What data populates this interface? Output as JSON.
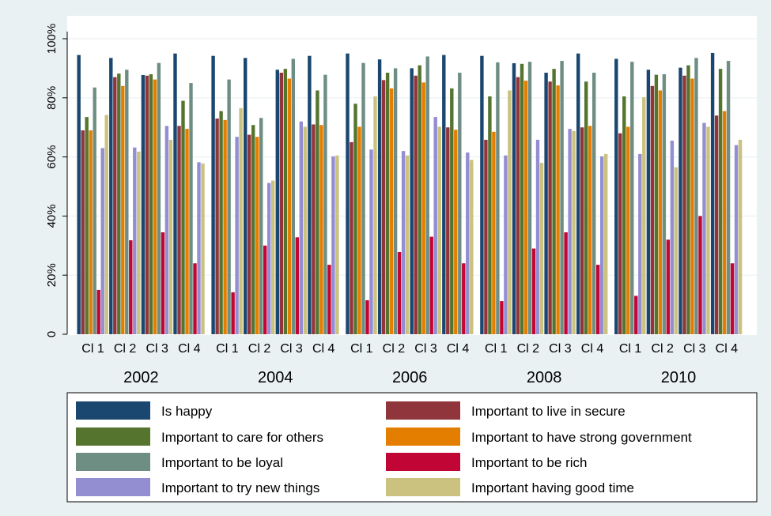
{
  "chart_data": {
    "type": "bar",
    "ylim": [
      0,
      100
    ],
    "yticks": [
      0,
      20,
      40,
      60,
      80,
      100
    ],
    "ytick_labels": [
      "0",
      "20%",
      "40%",
      "60%",
      "80%",
      "100%"
    ],
    "grid": "horizontal",
    "legend_position": "bottom",
    "years": [
      "2002",
      "2004",
      "2006",
      "2008",
      "2010"
    ],
    "clusters": [
      "Cl 1",
      "Cl 2",
      "Cl 3",
      "Cl 4"
    ],
    "series": [
      {
        "name": "Is happy",
        "color": "#1a476f",
        "values": [
          94.5,
          93.5,
          87.7,
          95.0,
          94.2,
          93.5,
          89.5,
          94.2,
          95.0,
          93.0,
          90.0,
          94.5,
          94.2,
          91.7,
          88.5,
          95.0,
          93.2,
          89.5,
          90.2,
          95.2
        ]
      },
      {
        "name": "Important to live in secure",
        "color": "#90353b",
        "values": [
          69.0,
          87.0,
          87.5,
          70.5,
          73.0,
          67.5,
          88.5,
          71.0,
          65.0,
          86.0,
          87.5,
          70.0,
          65.8,
          87.0,
          85.5,
          70.0,
          68.0,
          84.0,
          87.5,
          74.0
        ]
      },
      {
        "name": "Important to care for others",
        "color": "#55752f",
        "values": [
          73.5,
          88.2,
          88.0,
          79.0,
          75.5,
          70.8,
          89.8,
          82.5,
          78.0,
          88.5,
          91.0,
          83.2,
          80.5,
          91.5,
          89.8,
          85.5,
          80.5,
          87.8,
          91.0,
          89.8
        ]
      },
      {
        "name": "Important to have strong government",
        "color": "#e37e00",
        "values": [
          69.0,
          84.0,
          86.2,
          69.5,
          72.5,
          66.8,
          86.5,
          70.8,
          70.2,
          83.2,
          85.2,
          69.2,
          68.5,
          85.8,
          84.2,
          70.5,
          70.2,
          82.5,
          86.5,
          75.5
        ]
      },
      {
        "name": "Important to be loyal",
        "color": "#6e8e84",
        "values": [
          83.5,
          89.5,
          91.8,
          85.0,
          86.2,
          73.2,
          93.2,
          87.8,
          91.8,
          90.0,
          94.0,
          88.5,
          92.0,
          92.2,
          92.5,
          88.5,
          92.2,
          88.0,
          93.5,
          92.5
        ]
      },
      {
        "name": "Important to be rich",
        "color": "#c10534",
        "values": [
          15.0,
          31.8,
          34.5,
          24.0,
          14.2,
          30.0,
          32.8,
          23.5,
          11.5,
          27.8,
          33.0,
          24.0,
          11.2,
          29.0,
          34.5,
          23.5,
          13.0,
          32.0,
          40.0,
          24.0
        ]
      },
      {
        "name": "Important to try new things",
        "color": "#938dd2",
        "values": [
          63.0,
          63.2,
          70.5,
          58.2,
          66.8,
          51.2,
          72.0,
          60.2,
          62.5,
          62.0,
          73.5,
          61.5,
          60.5,
          65.8,
          69.5,
          60.2,
          61.0,
          65.5,
          71.5,
          64.0
        ]
      },
      {
        "name": "Important having good time",
        "color": "#cac27e",
        "values": [
          74.2,
          61.8,
          65.8,
          57.8,
          76.5,
          52.0,
          70.2,
          60.5,
          80.5,
          60.5,
          70.2,
          59.0,
          82.5,
          58.0,
          68.8,
          61.0,
          80.2,
          56.5,
          70.2,
          65.8
        ]
      }
    ]
  }
}
